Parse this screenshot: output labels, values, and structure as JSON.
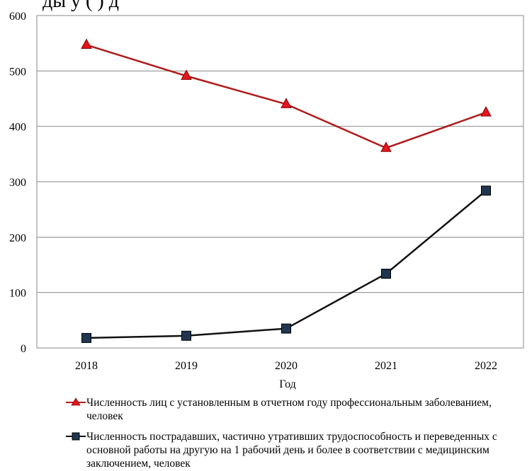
{
  "header_fragment": "ды        у    (                )    д",
  "chart_data": {
    "type": "line",
    "x": [
      "2018",
      "2019",
      "2020",
      "2021",
      "2022"
    ],
    "xlabel": "Год",
    "ylabel": "",
    "ylim": [
      0,
      600
    ],
    "yticks": [
      0,
      100,
      200,
      300,
      400,
      500,
      600
    ],
    "grid": "horizontal",
    "legend_position": "bottom",
    "series": [
      {
        "name": "Численность лиц с установленным в отчетном году профессиональным заболеванием, человек",
        "values": [
          547,
          491,
          440,
          361,
          425
        ],
        "color": "#b01c1c",
        "marker": "triangle"
      },
      {
        "name": "Численность пострадавших, частично утративших трудоспособность и переведенных с основной работы на другую на 1 рабочий день и более в соответствии с медицинским заключением, человек",
        "values": [
          18,
          22,
          35,
          134,
          284
        ],
        "color": "#111111",
        "marker_fill": "#1f3550",
        "marker": "square"
      }
    ]
  }
}
